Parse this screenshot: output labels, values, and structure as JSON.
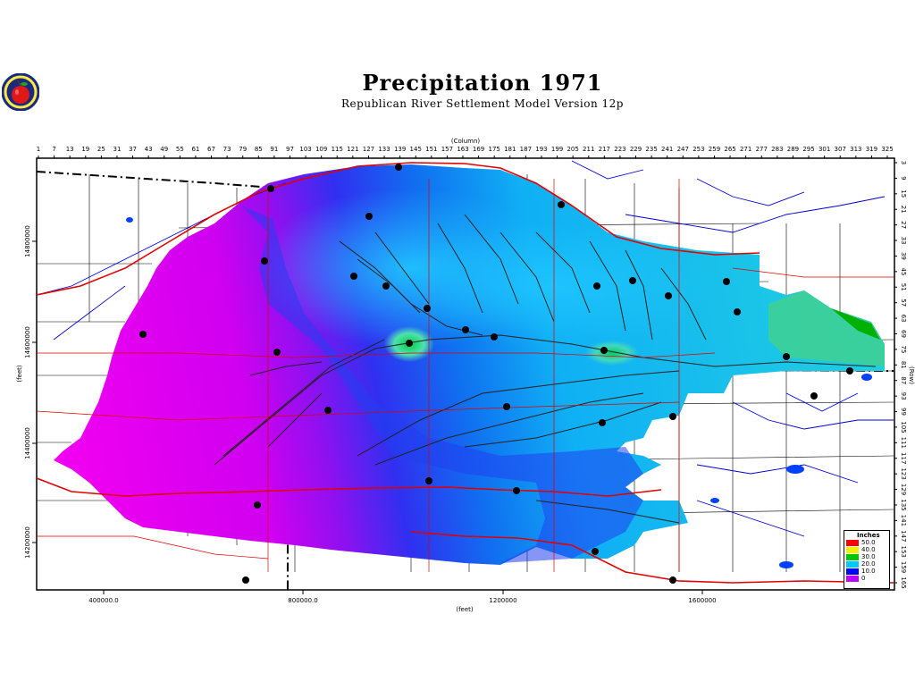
{
  "title": "Precipitation 1971",
  "subtitle": "Republican River Settlement Model Version 12p",
  "axes": {
    "column_label": "(Column)",
    "row_label": "(Row)",
    "x_feet_label": "(feet)",
    "y_feet_label": "(feet)",
    "column_ticks": [
      "1",
      "7",
      "13",
      "19",
      "25",
      "31",
      "37",
      "43",
      "49",
      "55",
      "61",
      "67",
      "73",
      "79",
      "85",
      "91",
      "97",
      "103",
      "109",
      "115",
      "121",
      "127",
      "133",
      "139",
      "145",
      "151",
      "157",
      "163",
      "169",
      "175",
      "181",
      "187",
      "193",
      "199",
      "205",
      "211",
      "217",
      "223",
      "229",
      "235",
      "241",
      "247",
      "253",
      "259",
      "265",
      "271",
      "277",
      "283",
      "289",
      "295",
      "301",
      "307",
      "313",
      "319",
      "325"
    ],
    "row_ticks": [
      "3",
      "9",
      "15",
      "21",
      "27",
      "33",
      "39",
      "45",
      "51",
      "57",
      "63",
      "69",
      "75",
      "81",
      "87",
      "93",
      "99",
      "105",
      "111",
      "117",
      "123",
      "129",
      "135",
      "141",
      "147",
      "153",
      "159",
      "165"
    ],
    "x_feet_ticks": [
      "400000.0",
      "800000.0",
      "1200000",
      "1600000"
    ],
    "y_feet_ticks": [
      "14800000",
      "14600000",
      "14400000",
      "14200000"
    ]
  },
  "legend": {
    "title": "Inches",
    "items": [
      {
        "label": "50.0",
        "color": "#ff0000"
      },
      {
        "label": "40.0",
        "color": "#f0f000"
      },
      {
        "label": "30.0",
        "color": "#00c800"
      },
      {
        "label": "20.0",
        "color": "#00c8ff"
      },
      {
        "label": "10.0",
        "color": "#0000ff"
      },
      {
        "label": "0",
        "color": "#c000ff"
      }
    ]
  },
  "colors": {
    "low": "#e000f0",
    "mid_low": "#7020f0",
    "mid": "#1a3cf0",
    "mid_high": "#22c8f5",
    "high": "#4ee07a",
    "river": "#0000c8",
    "road": "#e00000",
    "boundary": "#000000"
  },
  "logo_icon": "apple-logo-icon"
}
